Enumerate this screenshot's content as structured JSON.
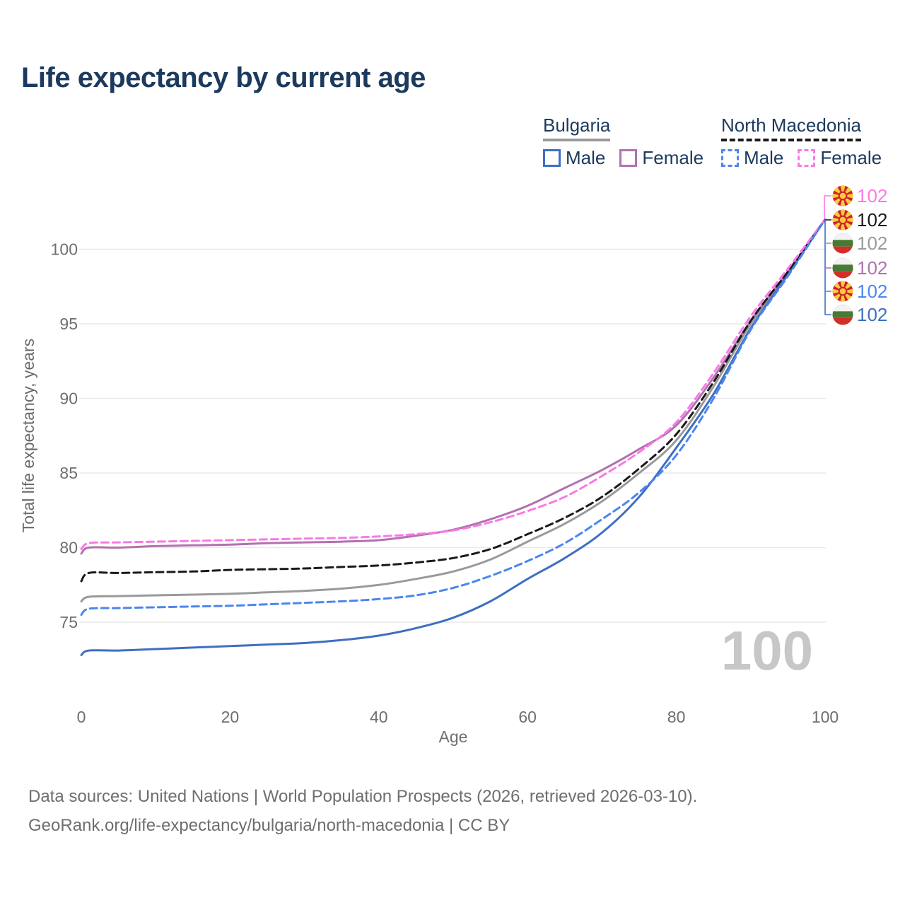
{
  "title": "Life expectancy by current age",
  "legend": {
    "groups": [
      {
        "label": "Bulgaria",
        "line_style": "solid",
        "line_color": "#9a9a9a",
        "items": [
          {
            "label": "Male",
            "color": "#3e6fc1",
            "dashed": false
          },
          {
            "label": "Female",
            "color": "#b172ae",
            "dashed": false
          }
        ]
      },
      {
        "label": "North Macedonia",
        "line_style": "dashed",
        "line_color": "#1a1a1a",
        "items": [
          {
            "label": "Male",
            "color": "#4b86f0",
            "dashed": true
          },
          {
            "label": "Female",
            "color": "#fb78e6",
            "dashed": true
          }
        ]
      }
    ]
  },
  "chart_data": {
    "type": "line",
    "title": "Life expectancy by current age",
    "xlabel": "Age",
    "ylabel": "Total life expectancy, years",
    "xticks": [
      0,
      20,
      40,
      60,
      80,
      100
    ],
    "yticks": [
      75,
      80,
      85,
      90,
      95,
      100
    ],
    "xlim": [
      0,
      100
    ],
    "ylim": [
      72,
      103
    ],
    "grid": "horizontal-only",
    "legend_position": "top-right",
    "age_indicator": "100",
    "ages": [
      0,
      1,
      5,
      10,
      15,
      20,
      25,
      30,
      35,
      40,
      45,
      50,
      55,
      60,
      65,
      70,
      75,
      80,
      85,
      90,
      95,
      100
    ],
    "series": [
      {
        "id": "bulgaria-total",
        "name": "Bulgaria (both sexes)",
        "country": "Bulgaria",
        "sex": "Total",
        "color": "#9a9a9a",
        "dashed": false,
        "values": [
          76.4,
          76.7,
          76.75,
          76.8,
          76.85,
          76.9,
          77.0,
          77.1,
          77.25,
          77.5,
          77.9,
          78.4,
          79.2,
          80.4,
          81.6,
          83.1,
          85.0,
          87.2,
          90.8,
          95.0,
          98.4,
          102
        ]
      },
      {
        "id": "bulgaria-female",
        "name": "Bulgaria Female",
        "country": "Bulgaria",
        "sex": "Female",
        "color": "#b172ae",
        "dashed": false,
        "values": [
          79.6,
          80.0,
          80.0,
          80.1,
          80.15,
          80.2,
          80.3,
          80.35,
          80.4,
          80.5,
          80.8,
          81.2,
          81.9,
          82.8,
          84.0,
          85.2,
          86.6,
          88.2,
          91.4,
          95.2,
          98.5,
          102
        ]
      },
      {
        "id": "bulgaria-male",
        "name": "Bulgaria Male",
        "country": "Bulgaria",
        "sex": "Male",
        "color": "#3e6fc1",
        "dashed": false,
        "values": [
          72.8,
          73.1,
          73.1,
          73.2,
          73.3,
          73.4,
          73.5,
          73.6,
          73.8,
          74.1,
          74.6,
          75.3,
          76.4,
          77.9,
          79.3,
          81.0,
          83.4,
          86.7,
          90.3,
          94.7,
          98.3,
          102
        ]
      },
      {
        "id": "north-macedonia-total",
        "name": "North Macedonia (both sexes)",
        "country": "North Macedonia",
        "sex": "Total",
        "color": "#1a1a1a",
        "dashed": true,
        "values": [
          77.75,
          78.3,
          78.3,
          78.35,
          78.4,
          78.5,
          78.55,
          78.6,
          78.7,
          78.8,
          79.0,
          79.3,
          79.9,
          80.9,
          82.0,
          83.4,
          85.3,
          87.6,
          91.1,
          95.2,
          98.5,
          102
        ]
      },
      {
        "id": "north-macedonia-female",
        "name": "North Macedonia Female",
        "country": "North Macedonia",
        "sex": "Female",
        "color": "#fb78e6",
        "dashed": true,
        "values": [
          79.9,
          80.3,
          80.35,
          80.4,
          80.45,
          80.5,
          80.55,
          80.6,
          80.65,
          80.75,
          80.9,
          81.15,
          81.7,
          82.45,
          83.4,
          84.8,
          86.4,
          88.4,
          91.7,
          95.5,
          98.7,
          102
        ]
      },
      {
        "id": "north-macedonia-male",
        "name": "North Macedonia Male",
        "country": "North Macedonia",
        "sex": "Male",
        "color": "#4b86f0",
        "dashed": true,
        "values": [
          75.5,
          75.9,
          75.95,
          76.0,
          76.05,
          76.1,
          76.2,
          76.3,
          76.4,
          76.55,
          76.8,
          77.3,
          78.1,
          79.1,
          80.3,
          81.9,
          83.7,
          86.2,
          90.0,
          94.6,
          98.2,
          102
        ]
      }
    ],
    "end_labels": [
      {
        "series_id": "north-macedonia-female",
        "flag": "north-macedonia",
        "value": "102"
      },
      {
        "series_id": "north-macedonia-total",
        "flag": "north-macedonia",
        "value": "102"
      },
      {
        "series_id": "bulgaria-total",
        "flag": "bulgaria",
        "value": "102"
      },
      {
        "series_id": "bulgaria-female",
        "flag": "bulgaria",
        "value": "102"
      },
      {
        "series_id": "north-macedonia-male",
        "flag": "north-macedonia",
        "value": "102"
      },
      {
        "series_id": "bulgaria-male",
        "flag": "bulgaria",
        "value": "102"
      }
    ]
  },
  "footer": {
    "line1": "Data sources: United Nations | World Population Prospects (2026, retrieved 2026-03-10).",
    "line2": "GeoRank.org/life-expectancy/bulgaria/north-macedonia | CC BY"
  }
}
